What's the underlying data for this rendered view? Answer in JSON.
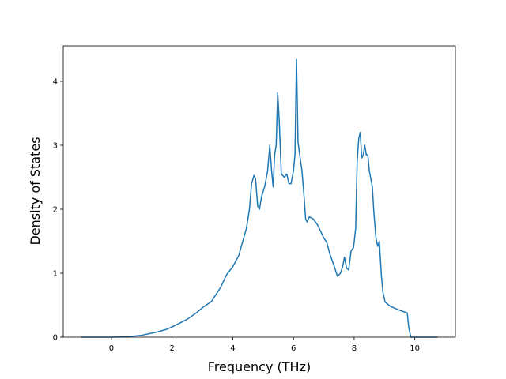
{
  "chart_data": {
    "type": "line",
    "xlabel": "Frequency (THz)",
    "ylabel": "Density of States",
    "x": [
      -1,
      0,
      0.5,
      1,
      1.5,
      1.8,
      2,
      2.5,
      2.8,
      3,
      3.3,
      3.6,
      3.8,
      4,
      4.2,
      4.3,
      4.45,
      4.55,
      4.62,
      4.7,
      4.75,
      4.82,
      4.88,
      4.95,
      5.05,
      5.15,
      5.22,
      5.28,
      5.33,
      5.38,
      5.43,
      5.48,
      5.53,
      5.6,
      5.7,
      5.78,
      5.85,
      5.92,
      6.0,
      6.05,
      6.1,
      6.15,
      6.22,
      6.28,
      6.35,
      6.4,
      6.45,
      6.52,
      6.65,
      6.8,
      6.9,
      7.0,
      7.1,
      7.2,
      7.35,
      7.45,
      7.55,
      7.62,
      7.68,
      7.75,
      7.82,
      7.9,
      7.98,
      8.05,
      8.1,
      8.15,
      8.2,
      8.25,
      8.3,
      8.35,
      8.4,
      8.45,
      8.5,
      8.6,
      8.65,
      8.72,
      8.78,
      8.83,
      8.9,
      8.95,
      9.02,
      9.2,
      9.5,
      9.75,
      9.8,
      9.87,
      10.75
    ],
    "series": [
      {
        "color": "#1f77b4",
        "values": [
          0,
          0,
          0.005,
          0.03,
          0.08,
          0.12,
          0.16,
          0.28,
          0.38,
          0.46,
          0.56,
          0.78,
          0.98,
          1.1,
          1.28,
          1.45,
          1.7,
          2.0,
          2.4,
          2.53,
          2.48,
          2.05,
          2.0,
          2.2,
          2.35,
          2.6,
          3.0,
          2.6,
          2.35,
          2.85,
          3.0,
          3.82,
          3.4,
          2.55,
          2.5,
          2.55,
          2.4,
          2.4,
          2.6,
          2.85,
          4.34,
          3.05,
          2.8,
          2.6,
          2.2,
          1.85,
          1.8,
          1.88,
          1.85,
          1.75,
          1.65,
          1.55,
          1.48,
          1.3,
          1.1,
          0.95,
          1.0,
          1.1,
          1.25,
          1.08,
          1.05,
          1.35,
          1.4,
          1.7,
          2.75,
          3.1,
          3.2,
          2.8,
          2.85,
          3.0,
          2.85,
          2.85,
          2.6,
          2.35,
          1.95,
          1.55,
          1.42,
          1.5,
          0.95,
          0.7,
          0.55,
          0.48,
          0.42,
          0.38,
          0.15,
          0,
          0
        ]
      }
    ],
    "xlim": [
      -1.5875,
      11.3375
    ],
    "ylim": [
      0,
      4.555
    ],
    "xticks": [
      0,
      2,
      4,
      6,
      8,
      10
    ],
    "yticks": [
      0,
      1,
      2,
      3,
      4
    ]
  }
}
